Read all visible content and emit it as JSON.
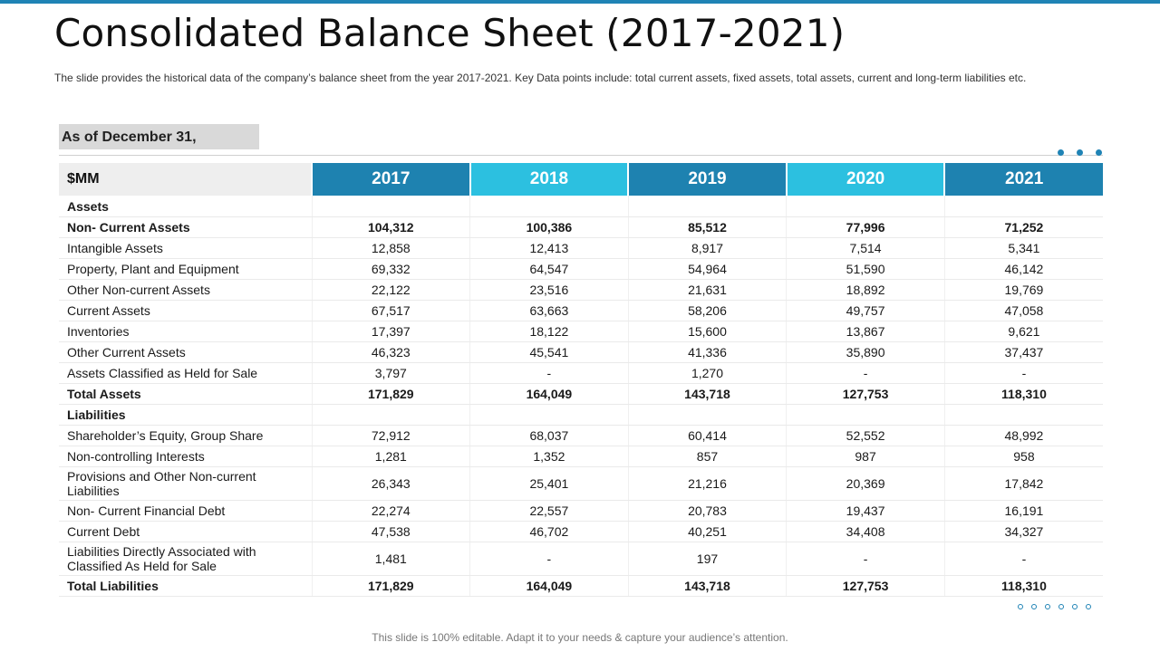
{
  "title": "Consolidated Balance Sheet (2017-2021)",
  "subtitle": "The slide provides  the historical data of the company’s balance sheet from the year 2017-2021.  Key Data points include: total current assets, fixed assets, total assets, current and long-term liabilities etc.",
  "date_label": "As of December 31,",
  "table": {
    "unit_label": "$MM",
    "years": [
      "2017",
      "2018",
      "2019",
      "2020",
      "2021"
    ],
    "rows": [
      {
        "label": "Assets",
        "values": [
          "",
          "",
          "",
          "",
          ""
        ]
      },
      {
        "label": "Non- Current Assets",
        "values": [
          "104,312",
          "100,386",
          "85,512",
          "77,996",
          "71,252"
        ]
      },
      {
        "label": "Intangible Assets",
        "values": [
          "12,858",
          "12,413",
          "8,917",
          "7,514",
          "5,341"
        ]
      },
      {
        "label": "Property, Plant and Equipment",
        "values": [
          "69,332",
          "64,547",
          "54,964",
          "51,590",
          "46,142"
        ]
      },
      {
        "label": "Other Non-current Assets",
        "values": [
          "22,122",
          "23,516",
          "21,631",
          "18,892",
          "19,769"
        ]
      },
      {
        "label": "Current Assets",
        "values": [
          "67,517",
          "63,663",
          "58,206",
          "49,757",
          "47,058"
        ]
      },
      {
        "label": "Inventories",
        "values": [
          "17,397",
          "18,122",
          "15,600",
          "13,867",
          "9,621"
        ]
      },
      {
        "label": "Other Current Assets",
        "values": [
          "46,323",
          "45,541",
          "41,336",
          "35,890",
          "37,437"
        ]
      },
      {
        "label": "Assets Classified as Held for Sale",
        "values": [
          "3,797",
          "-",
          "1,270",
          "-",
          "-"
        ]
      },
      {
        "label": "Total Assets",
        "values": [
          "171,829",
          "164,049",
          "143,718",
          "127,753",
          "118,310"
        ]
      },
      {
        "label": "Liabilities",
        "values": [
          "",
          "",
          "",
          "",
          ""
        ]
      },
      {
        "label": "Shareholder’s Equity, Group Share",
        "values": [
          "72,912",
          "68,037",
          "60,414",
          "52,552",
          "48,992"
        ]
      },
      {
        "label": "Non-controlling Interests",
        "values": [
          "1,281",
          "1,352",
          "857",
          "987",
          "958"
        ]
      },
      {
        "label": "Provisions and Other Non-current Liabilities",
        "values": [
          "26,343",
          "25,401",
          "21,216",
          "20,369",
          "17,842"
        ]
      },
      {
        "label": "Non- Current Financial Debt",
        "values": [
          "22,274",
          "22,557",
          "20,783",
          "19,437",
          "16,191"
        ]
      },
      {
        "label": "Current Debt",
        "values": [
          "47,538",
          "46,702",
          "40,251",
          "34,408",
          "34,327"
        ]
      },
      {
        "label": "Liabilities Directly Associated with Classified As Held for Sale",
        "values": [
          "1,481",
          "-",
          "197",
          "-",
          "-"
        ]
      },
      {
        "label": "Total Liabilities",
        "values": [
          "171,829",
          "164,049",
          "143,718",
          "127,753",
          "118,310"
        ]
      }
    ]
  },
  "footer": "This slide is 100% editable. Adapt it to your needs & capture your audience’s attention.",
  "colors": {
    "accent_dark": "#1e82b0",
    "accent_light": "#2cc0e0"
  }
}
